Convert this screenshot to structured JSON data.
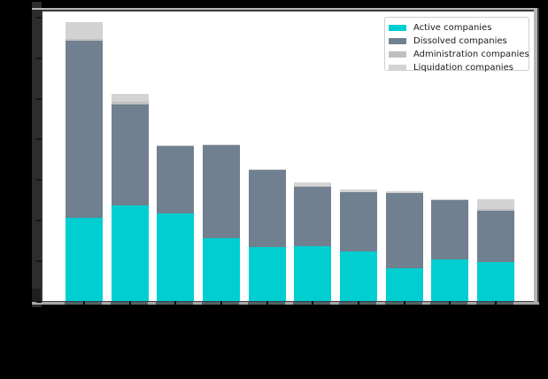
{
  "figure": {
    "background_color": "#000000",
    "plot_background_color": "#ffffff",
    "spine_gray": "#b4b4b4",
    "spine_dark": "#3c3c3c"
  },
  "legend": {
    "position": "upper right",
    "items": [
      {
        "label": "Active companies",
        "color": "#00CED1"
      },
      {
        "label": "Dissolved companies",
        "color": "#708090"
      },
      {
        "label": "Administration companies",
        "color": "#C0C0C0"
      },
      {
        "label": "Liquidation companies",
        "color": "#D3D3D3"
      }
    ]
  },
  "chart_data": {
    "type": "bar",
    "stacked": true,
    "title": "",
    "xlabel": "",
    "ylabel": "",
    "x": [
      1,
      2,
      3,
      4,
      5,
      6,
      7,
      8,
      9,
      10
    ],
    "x_tick_labels_visible": false,
    "y_tick_labels_visible": false,
    "value_units": "y-axis gridline intervals (tick labels not legible in source image)",
    "ylim": [
      0,
      7.17
    ],
    "yticks": [
      0,
      1,
      2,
      3,
      4,
      5,
      6,
      7
    ],
    "grid": false,
    "legend_position": "upper right",
    "series": [
      {
        "name": "Active companies",
        "color": "#00CED1",
        "values": [
          2.05,
          2.36,
          2.16,
          1.54,
          1.32,
          1.36,
          1.21,
          0.81,
          1.03,
          0.96
        ]
      },
      {
        "name": "Dissolved companies",
        "color": "#708090",
        "values": [
          4.36,
          2.47,
          1.66,
          2.3,
          1.9,
          1.46,
          1.48,
          1.85,
          1.45,
          1.26
        ]
      },
      {
        "name": "Administration companies",
        "color": "#C0C0C0",
        "values": [
          0.05,
          0.07,
          0.0,
          0.0,
          0.0,
          0.02,
          0.0,
          0.0,
          0.0,
          0.04
        ]
      },
      {
        "name": "Liquidation companies",
        "color": "#D3D3D3",
        "values": [
          0.4,
          0.2,
          0.02,
          0.02,
          0.03,
          0.07,
          0.05,
          0.04,
          0.03,
          0.25
        ]
      }
    ]
  }
}
